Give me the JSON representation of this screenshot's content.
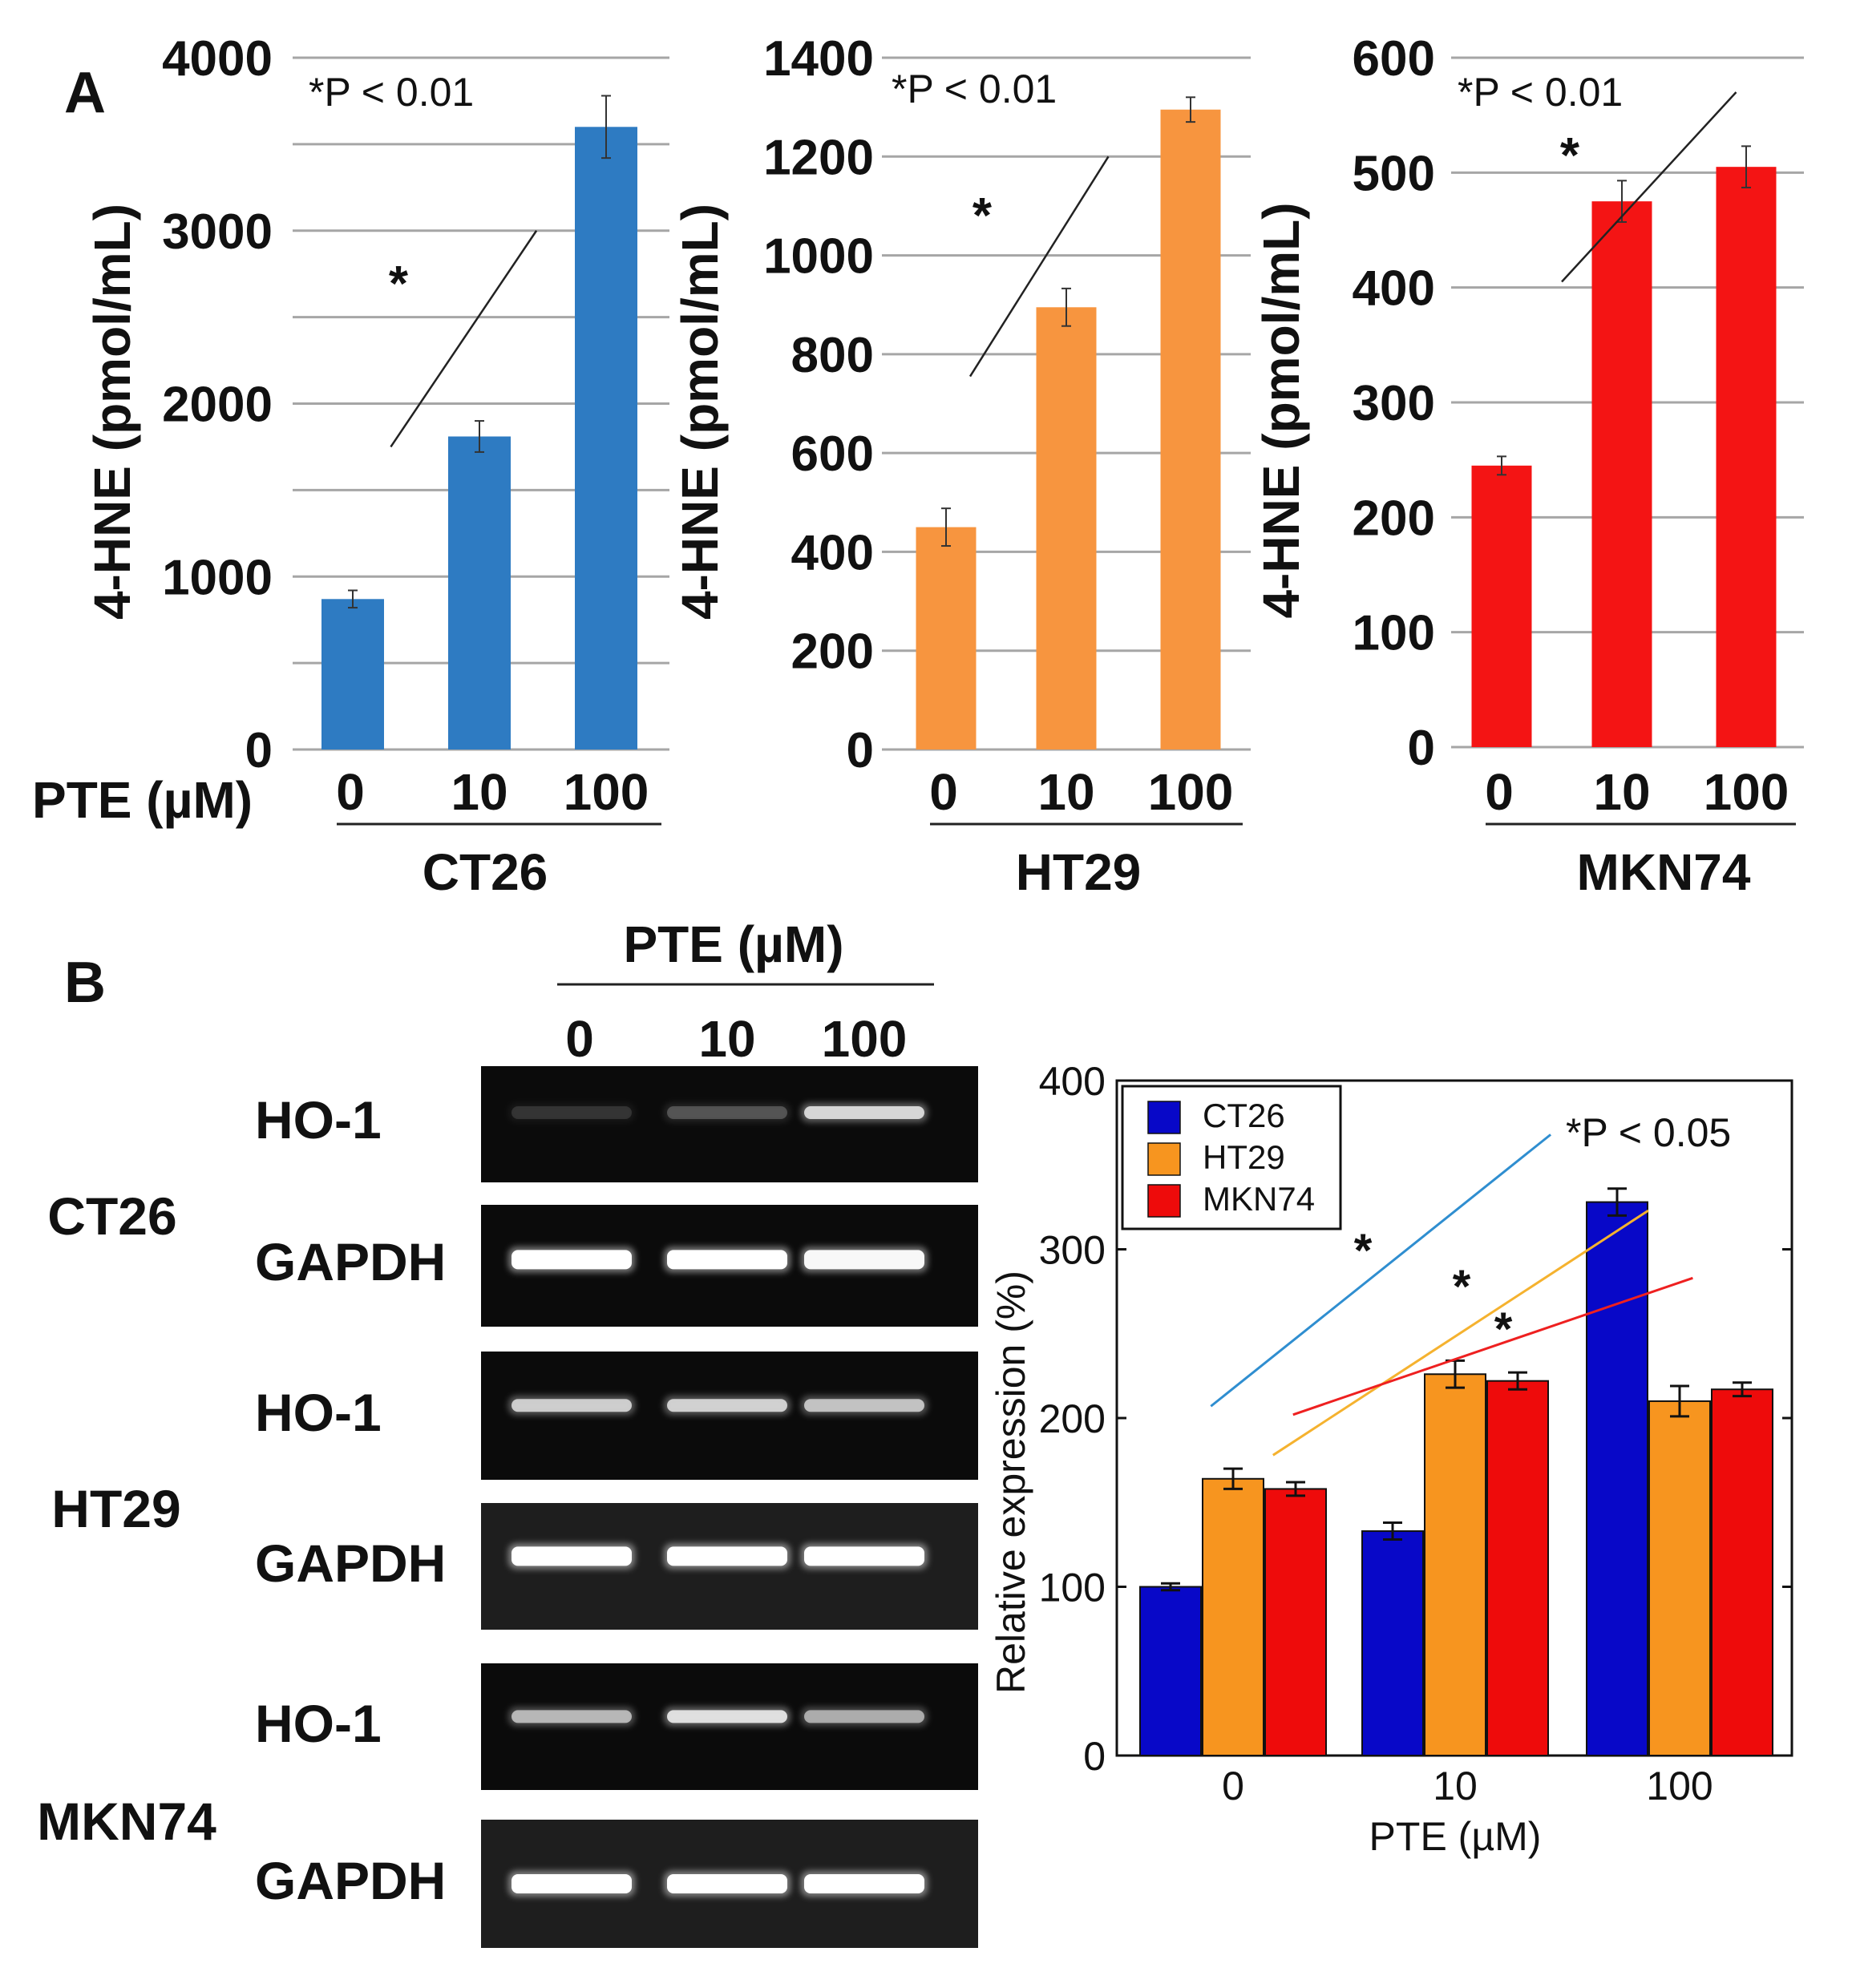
{
  "panels": {
    "a": "A",
    "b": "B"
  },
  "chart_data": [
    {
      "type": "bar",
      "cell_line": "CT26",
      "xlabel": "PTE (µM)",
      "ylabel": "4-HNE (pmol/mL)",
      "categories": [
        "0",
        "10",
        "100"
      ],
      "values": [
        870,
        1810,
        3600
      ],
      "errors": [
        50,
        90,
        180
      ],
      "color": "#2e7bc2",
      "ylim": [
        0,
        4000
      ],
      "yticks": [
        0,
        1000,
        2000,
        3000,
        4000
      ],
      "gridlines": [
        0,
        500,
        1000,
        1500,
        2000,
        2500,
        3000,
        3500,
        4000
      ],
      "annotation": "*P < 0.01",
      "sig_mark": "*",
      "sig_line": {
        "x0": 0.3,
        "y0": 1750,
        "x1": 1.45,
        "y1": 3000
      }
    },
    {
      "type": "bar",
      "cell_line": "HT29",
      "xlabel": "PTE (µM)",
      "ylabel": "4-HNE (pmol/mL)",
      "categories": [
        "0",
        "10",
        "100"
      ],
      "values": [
        450,
        895,
        1295
      ],
      "errors": [
        38,
        38,
        25
      ],
      "color": "#f7953f",
      "ylim": [
        0,
        1400
      ],
      "yticks": [
        0,
        200,
        400,
        600,
        800,
        1000,
        1200,
        1400
      ],
      "gridlines": [
        0,
        200,
        400,
        600,
        800,
        1000,
        1200,
        1400
      ],
      "annotation": "*P < 0.01",
      "sig_mark": "*",
      "sig_line": {
        "x0": 0.2,
        "y0": 755,
        "x1": 1.35,
        "y1": 1200
      }
    },
    {
      "type": "bar",
      "cell_line": "MKN74",
      "xlabel": "PTE (µM)",
      "ylabel": "4-HNE (pmol/mL)",
      "categories": [
        "0",
        "10",
        "100"
      ],
      "values": [
        245,
        475,
        505
      ],
      "errors": [
        8,
        18,
        18
      ],
      "color": "#f41414",
      "ylim": [
        0,
        600
      ],
      "yticks": [
        0,
        100,
        200,
        300,
        400,
        500,
        600
      ],
      "gridlines": [
        0,
        100,
        200,
        300,
        400,
        500,
        600
      ],
      "annotation": "*P < 0.01",
      "sig_mark": "*",
      "sig_line": {
        "x0": 0.5,
        "y0": 405,
        "x1": 1.95,
        "y1": 570
      }
    },
    {
      "type": "bar",
      "xlabel": "PTE (µM)",
      "ylabel": "Relative expression (%)",
      "categories": [
        "0",
        "10",
        "100"
      ],
      "series": [
        {
          "name": "CT26",
          "values": [
            100,
            133,
            328
          ],
          "errors": [
            2,
            5,
            8
          ],
          "color": "#0808c8"
        },
        {
          "name": "HT29",
          "values": [
            164,
            226,
            210
          ],
          "errors": [
            6,
            8,
            9
          ],
          "color": "#f7951f"
        },
        {
          "name": "MKN74",
          "values": [
            158,
            222,
            217
          ],
          "errors": [
            4,
            5,
            4
          ],
          "color": "#ee0b0b"
        }
      ],
      "ylim": [
        0,
        400
      ],
      "yticks": [
        0,
        100,
        200,
        300,
        400
      ],
      "annotation": "*P < 0.05",
      "sig_lines": [
        {
          "x0": -0.1,
          "y0": 207,
          "x1": 1.43,
          "y1": 368,
          "color": "#2f8ed0",
          "mark": "*"
        },
        {
          "x0": 0.18,
          "y0": 178,
          "x1": 1.87,
          "y1": 323,
          "color": "#f5b22f",
          "mark": "*"
        },
        {
          "x0": 0.27,
          "y0": 202,
          "x1": 2.07,
          "y1": 283,
          "color": "#ee2020",
          "mark": "*"
        }
      ],
      "legend": "top-left"
    }
  ],
  "gel": {
    "pte_title": "PTE (µM)",
    "lanes": [
      "0",
      "10",
      "100"
    ],
    "blocks": [
      {
        "cell_line": "CT26",
        "rows": [
          {
            "label": "HO-1",
            "intensity": [
              0.12,
              0.22,
              0.75
            ]
          },
          {
            "label": "GAPDH",
            "intensity": [
              1.0,
              1.0,
              0.95
            ]
          }
        ]
      },
      {
        "cell_line": "HT29",
        "rows": [
          {
            "label": "HO-1",
            "intensity": [
              0.7,
              0.72,
              0.65
            ]
          },
          {
            "label": "GAPDH",
            "intensity": [
              1.0,
              1.0,
              1.0
            ]
          }
        ]
      },
      {
        "cell_line": "MKN74",
        "rows": [
          {
            "label": "HO-1",
            "intensity": [
              0.6,
              0.8,
              0.55
            ]
          },
          {
            "label": "GAPDH",
            "intensity": [
              1.0,
              1.0,
              1.0
            ]
          }
        ]
      }
    ]
  }
}
